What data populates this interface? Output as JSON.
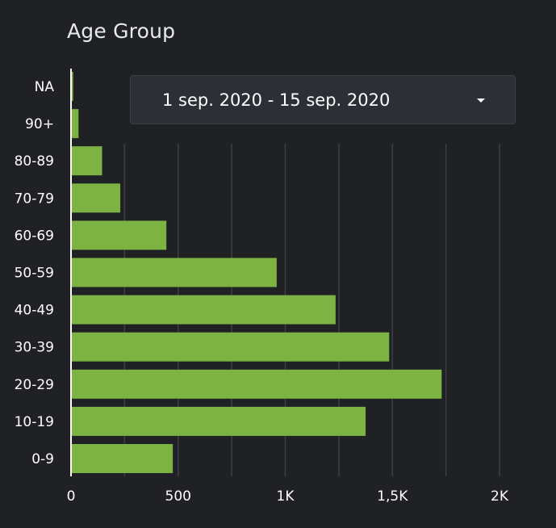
{
  "chart_data": {
    "type": "bar",
    "orientation": "horizontal",
    "title": "Age Group",
    "categories": [
      "NA",
      "90+",
      "80-89",
      "70-79",
      "60-69",
      "50-59",
      "40-49",
      "30-39",
      "20-29",
      "10-19",
      "0-9"
    ],
    "values": [
      10,
      35,
      145,
      230,
      445,
      960,
      1235,
      1485,
      1730,
      1375,
      475
    ],
    "xlim": [
      0,
      2000
    ],
    "x_ticks": [
      0,
      500,
      1000,
      1500,
      2000
    ],
    "x_tick_labels": [
      "0",
      "500",
      "1K",
      "1,5K",
      "2K"
    ],
    "grid": true,
    "bar_color": "#7cb342",
    "grid_color": "#3c4043"
  },
  "date_range": {
    "label": "1 sep. 2020 - 15 sep. 2020",
    "caret_icon": "caret-down-icon"
  }
}
